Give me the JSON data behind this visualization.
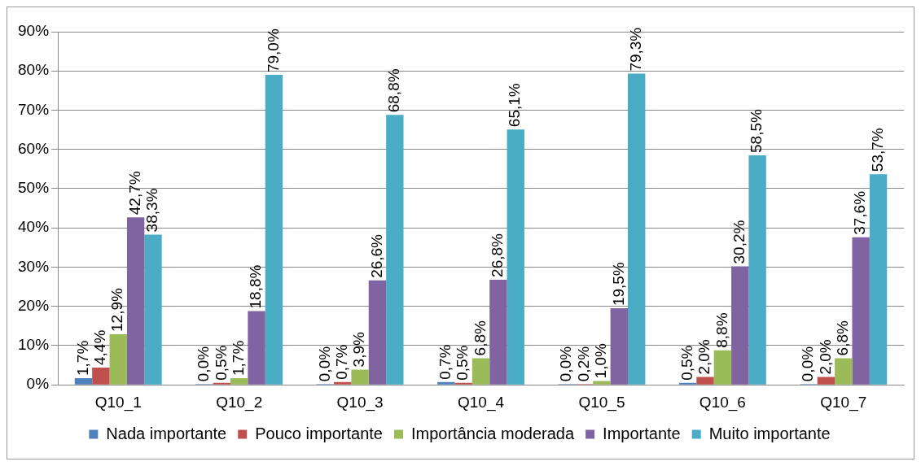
{
  "chart_data": {
    "type": "bar",
    "categories": [
      "Q10_1",
      "Q10_2",
      "Q10_3",
      "Q10_4",
      "Q10_5",
      "Q10_6",
      "Q10_7"
    ],
    "series": [
      {
        "name": "Nada importante",
        "color": "#4f81bd",
        "values": [
          1.7,
          0.0,
          0.0,
          0.7,
          0.0,
          0.5,
          0.0
        ],
        "value_labels": [
          "1,7%",
          "0,0%",
          "0,0%",
          "0,7%",
          "0,0%",
          "0,5%",
          "0,0%"
        ]
      },
      {
        "name": "Pouco importante",
        "color": "#c0504d",
        "values": [
          4.4,
          0.5,
          0.7,
          0.5,
          0.2,
          2.0,
          2.0
        ],
        "value_labels": [
          "4,4%",
          "0,5%",
          "0,7%",
          "0,5%",
          "0,2%",
          "2,0%",
          "2,0%"
        ]
      },
      {
        "name": "Importância moderada",
        "color": "#9bbb59",
        "values": [
          12.9,
          1.7,
          3.9,
          6.8,
          1.0,
          8.8,
          6.8
        ],
        "value_labels": [
          "12,9%",
          "1,7%",
          "3,9%",
          "6,8%",
          "1,0%",
          "8,8%",
          "6,8%"
        ]
      },
      {
        "name": "Importante",
        "color": "#8064a2",
        "values": [
          42.7,
          18.8,
          26.6,
          26.8,
          19.5,
          30.2,
          37.6
        ],
        "value_labels": [
          "42,7%",
          "18,8%",
          "26,6%",
          "26,8%",
          "19,5%",
          "30,2%",
          "37,6%"
        ]
      },
      {
        "name": "Muito importante",
        "color": "#4bacc6",
        "values": [
          38.3,
          79.0,
          68.8,
          65.1,
          79.3,
          58.5,
          53.7
        ],
        "value_labels": [
          "38,3%",
          "79,0%",
          "68,8%",
          "65,1%",
          "79,3%",
          "58,5%",
          "53,7%"
        ]
      }
    ],
    "ylim": [
      0,
      90
    ],
    "yticks": [
      {
        "value": 0,
        "label": "0%"
      },
      {
        "value": 10,
        "label": "10%"
      },
      {
        "value": 20,
        "label": "20%"
      },
      {
        "value": 30,
        "label": "30%"
      },
      {
        "value": 40,
        "label": "40%"
      },
      {
        "value": 50,
        "label": "50%"
      },
      {
        "value": 60,
        "label": "60%"
      },
      {
        "value": 70,
        "label": "70%"
      },
      {
        "value": 80,
        "label": "80%"
      },
      {
        "value": 90,
        "label": "90%"
      }
    ],
    "grid": "y",
    "legend": "bottom"
  }
}
